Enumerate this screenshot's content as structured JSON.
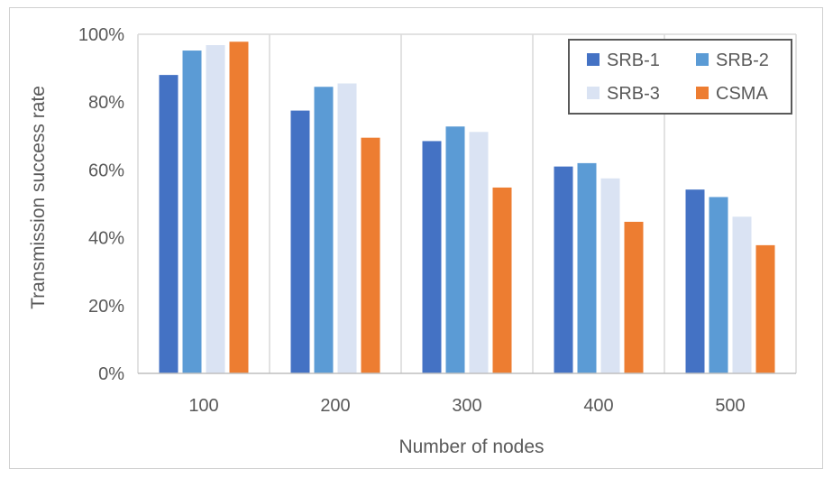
{
  "chart_data": {
    "type": "bar",
    "title": "",
    "xlabel": "Number of nodes",
    "ylabel": "Transmission success rate",
    "categories": [
      "100",
      "200",
      "300",
      "400",
      "500"
    ],
    "ylim": [
      0,
      1
    ],
    "yticks": [
      0,
      0.2,
      0.4,
      0.6,
      0.8,
      1.0
    ],
    "ytick_labels": [
      "0%",
      "20%",
      "40%",
      "60%",
      "80%",
      "100%"
    ],
    "grid": "vertical category separators",
    "legend_position": "top-right",
    "series": [
      {
        "name": "SRB-1",
        "color": "#4472c4",
        "values": [
          0.88,
          0.775,
          0.685,
          0.61,
          0.542
        ]
      },
      {
        "name": "SRB-2",
        "color": "#5b9bd5",
        "values": [
          0.952,
          0.845,
          0.728,
          0.62,
          0.52
        ]
      },
      {
        "name": "SRB-3",
        "color": "#dae3f3",
        "values": [
          0.968,
          0.855,
          0.712,
          0.575,
          0.462
        ]
      },
      {
        "name": "CSMA",
        "color": "#ed7d31",
        "values": [
          0.978,
          0.695,
          0.548,
          0.447,
          0.378
        ]
      }
    ]
  }
}
